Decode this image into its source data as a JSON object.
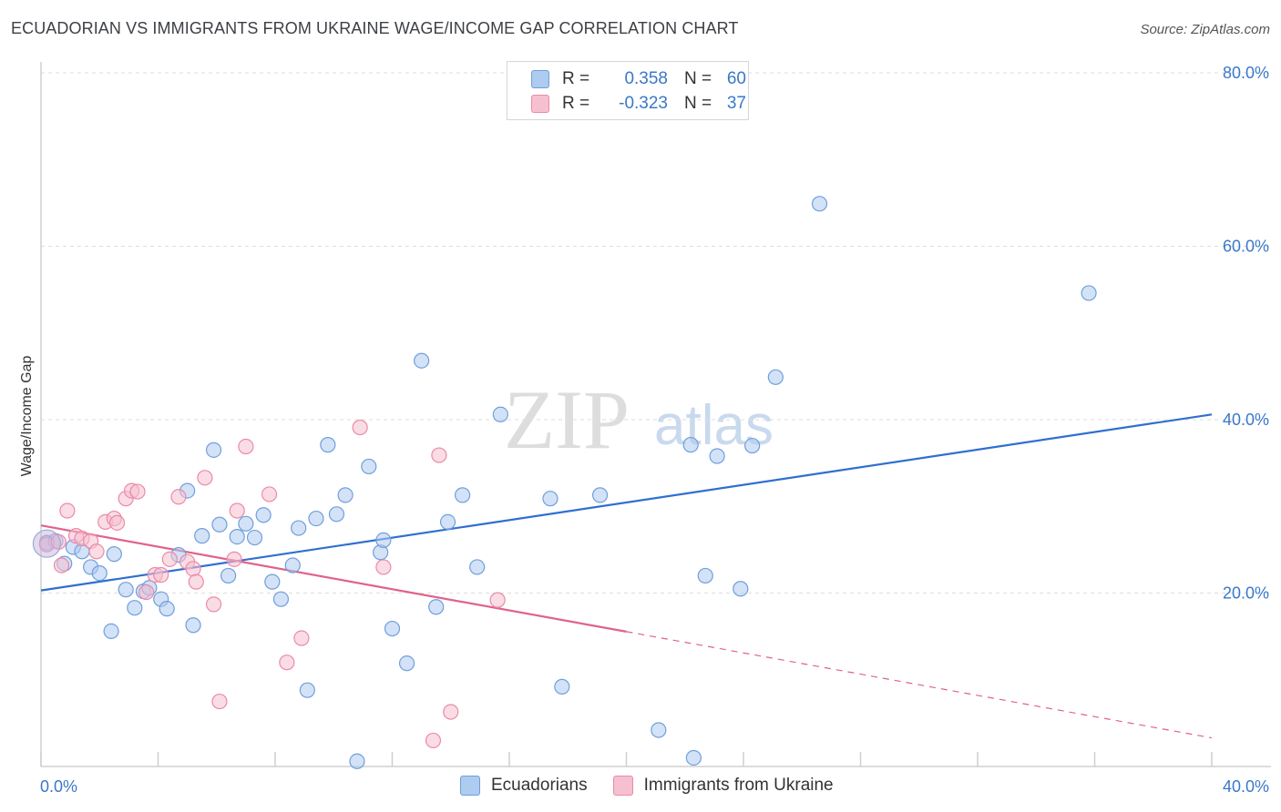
{
  "title": "ECUADORIAN VS IMMIGRANTS FROM UKRAINE WAGE/INCOME GAP CORRELATION CHART",
  "source": "Source: ZipAtlas.com",
  "watermark": {
    "zip": "ZIP",
    "atlas": "atlas"
  },
  "colors": {
    "blue_fill": "#aecbf0",
    "blue_stroke": "#6f9fdc",
    "blue_line": "#2f6fcf",
    "pink_fill": "#f6c0d0",
    "pink_stroke": "#eb8aa8",
    "pink_line": "#e0628c",
    "accent_text": "#3a78c9"
  },
  "legend": {
    "rows": [
      {
        "r_label": "R =",
        "r_value": "0.358",
        "n_label": "N =",
        "n_value": "60"
      },
      {
        "r_label": "R =",
        "r_value": "-0.323",
        "n_label": "N =",
        "n_value": "37"
      }
    ]
  },
  "bottom_legend": {
    "series1": "Ecuadorians",
    "series2": "Immigrants from Ukraine"
  },
  "chart_data": {
    "type": "scatter",
    "title": "ECUADORIAN VS IMMIGRANTS FROM UKRAINE WAGE/INCOME GAP CORRELATION CHART",
    "xlabel": "",
    "ylabel": "Wage/Income Gap",
    "xlim": [
      0,
      40
    ],
    "ylim": [
      0,
      80
    ],
    "x_tick_labels": [
      "0.0%",
      "40.0%"
    ],
    "y_tick_labels": [
      "20.0%",
      "40.0%",
      "60.0%",
      "80.0%"
    ],
    "y_ticks": [
      20,
      40,
      60,
      80
    ],
    "grid": true,
    "series": [
      {
        "name": "Ecuadorians",
        "r": 0.358,
        "n": 60,
        "trend": {
          "x": [
            0,
            40
          ],
          "y": [
            20.3,
            40.6
          ],
          "dashed_from": null
        },
        "points": [
          [
            0.2,
            25.8
          ],
          [
            0.5,
            26.0
          ],
          [
            0.8,
            23.4
          ],
          [
            1.1,
            25.3
          ],
          [
            1.4,
            24.8
          ],
          [
            1.7,
            23.0
          ],
          [
            2.0,
            22.3
          ],
          [
            2.4,
            15.6
          ],
          [
            2.5,
            24.5
          ],
          [
            2.9,
            20.4
          ],
          [
            3.2,
            18.3
          ],
          [
            3.5,
            20.2
          ],
          [
            3.7,
            20.6
          ],
          [
            4.1,
            19.3
          ],
          [
            4.3,
            18.2
          ],
          [
            4.7,
            24.4
          ],
          [
            5.0,
            31.8
          ],
          [
            5.2,
            16.3
          ],
          [
            5.5,
            26.6
          ],
          [
            5.9,
            36.5
          ],
          [
            6.1,
            27.9
          ],
          [
            6.4,
            22.0
          ],
          [
            6.7,
            26.5
          ],
          [
            7.0,
            28.0
          ],
          [
            7.3,
            26.4
          ],
          [
            7.6,
            29.0
          ],
          [
            7.9,
            21.3
          ],
          [
            8.2,
            19.3
          ],
          [
            8.6,
            23.2
          ],
          [
            8.8,
            27.5
          ],
          [
            9.1,
            8.8
          ],
          [
            9.4,
            28.6
          ],
          [
            9.8,
            37.1
          ],
          [
            10.1,
            29.1
          ],
          [
            10.4,
            31.3
          ],
          [
            10.8,
            0.6
          ],
          [
            11.2,
            34.6
          ],
          [
            11.6,
            24.7
          ],
          [
            11.7,
            26.1
          ],
          [
            12.0,
            15.9
          ],
          [
            12.5,
            11.9
          ],
          [
            13.0,
            46.8
          ],
          [
            13.5,
            18.4
          ],
          [
            13.9,
            28.2
          ],
          [
            14.4,
            31.3
          ],
          [
            14.9,
            23.0
          ],
          [
            15.7,
            40.6
          ],
          [
            17.4,
            30.9
          ],
          [
            17.8,
            9.2
          ],
          [
            19.1,
            31.3
          ],
          [
            21.1,
            4.2
          ],
          [
            22.2,
            37.1
          ],
          [
            22.3,
            1.0
          ],
          [
            22.7,
            22.0
          ],
          [
            23.1,
            35.8
          ],
          [
            23.9,
            20.5
          ],
          [
            24.3,
            37.0
          ],
          [
            25.1,
            44.9
          ],
          [
            26.6,
            64.9
          ],
          [
            35.8,
            54.6
          ]
        ]
      },
      {
        "name": "Immigrants from Ukraine",
        "r": -0.323,
        "n": 37,
        "trend": {
          "x": [
            0,
            40
          ],
          "y": [
            27.8,
            3.3
          ],
          "dashed_from": 20
        },
        "points": [
          [
            0.2,
            25.6
          ],
          [
            0.6,
            25.9
          ],
          [
            0.7,
            23.2
          ],
          [
            0.9,
            29.5
          ],
          [
            1.2,
            26.6
          ],
          [
            1.4,
            26.3
          ],
          [
            1.7,
            26.0
          ],
          [
            1.9,
            24.8
          ],
          [
            2.2,
            28.2
          ],
          [
            2.5,
            28.6
          ],
          [
            2.6,
            28.1
          ],
          [
            2.9,
            30.9
          ],
          [
            3.1,
            31.8
          ],
          [
            3.3,
            31.7
          ],
          [
            3.6,
            20.1
          ],
          [
            3.9,
            22.1
          ],
          [
            4.1,
            22.1
          ],
          [
            4.4,
            23.9
          ],
          [
            4.7,
            31.1
          ],
          [
            5.0,
            23.6
          ],
          [
            5.2,
            22.8
          ],
          [
            5.3,
            21.3
          ],
          [
            5.6,
            33.3
          ],
          [
            5.9,
            18.7
          ],
          [
            6.1,
            7.5
          ],
          [
            6.6,
            23.9
          ],
          [
            6.7,
            29.5
          ],
          [
            7.0,
            36.9
          ],
          [
            7.8,
            31.4
          ],
          [
            8.4,
            12.0
          ],
          [
            8.9,
            14.8
          ],
          [
            10.9,
            39.1
          ],
          [
            11.7,
            23.0
          ],
          [
            13.4,
            3.0
          ],
          [
            13.6,
            35.9
          ],
          [
            14.0,
            6.3
          ],
          [
            15.6,
            19.2
          ]
        ]
      }
    ]
  }
}
